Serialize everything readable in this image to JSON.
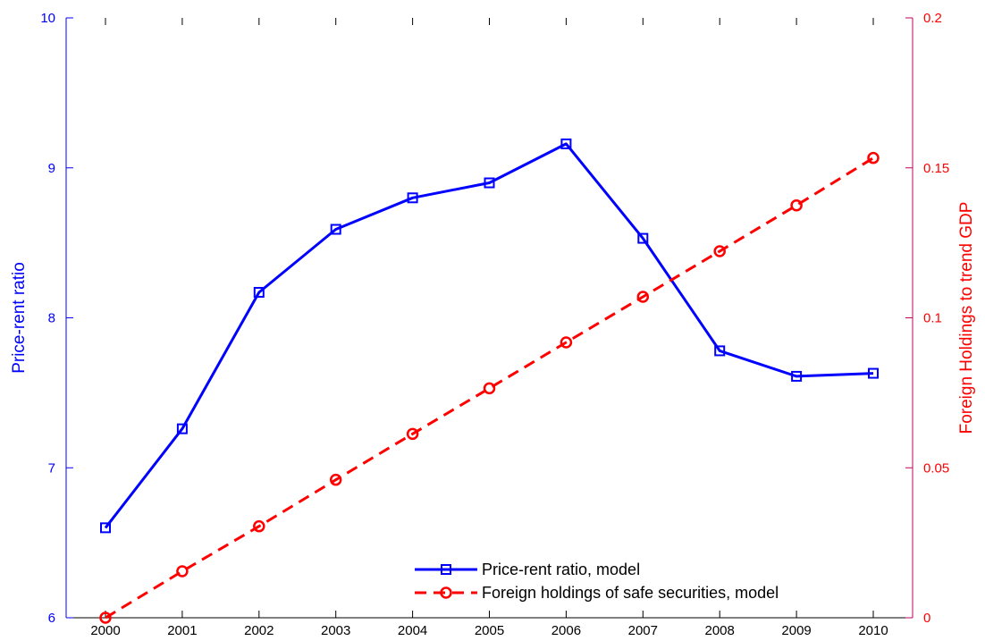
{
  "chart_data": {
    "type": "line",
    "x": [
      2000,
      2001,
      2002,
      2003,
      2004,
      2005,
      2006,
      2007,
      2008,
      2009,
      2010
    ],
    "x_ticks": [
      "2000",
      "2001",
      "2002",
      "2003",
      "2004",
      "2005",
      "2006",
      "2007",
      "2008",
      "2009",
      "2010"
    ],
    "xlim": [
      2000,
      2010
    ],
    "y_left": {
      "label": "Price-rent ratio",
      "ylim": [
        6,
        10
      ],
      "ticks": [
        "6",
        "7",
        "8",
        "9",
        "10"
      ],
      "color": "#0000ff"
    },
    "y_right": {
      "label": "Foreign Holdings to trend GDP",
      "ylim": [
        0,
        0.2
      ],
      "ticks": [
        "0",
        "0.05",
        "0.1",
        "0.15",
        "0.2"
      ],
      "color": "#ff0000",
      "axis_color": "#c00060"
    },
    "series": [
      {
        "name": "Price-rent ratio, model",
        "axis": "left",
        "color": "#0000ff",
        "style": "solid",
        "marker": "square",
        "values": [
          6.6,
          7.26,
          8.17,
          8.59,
          8.8,
          8.9,
          9.16,
          8.53,
          7.78,
          7.61,
          7.63
        ]
      },
      {
        "name": "Foreign holdings of safe securities, model",
        "axis": "right",
        "color": "#ff0000",
        "style": "dashed",
        "marker": "circle",
        "values": [
          0.0,
          0.0155,
          0.0305,
          0.046,
          0.0613,
          0.0765,
          0.0918,
          0.107,
          0.1222,
          0.1375,
          0.1533
        ]
      }
    ],
    "legend_position": "bottom-center",
    "grid": false
  }
}
